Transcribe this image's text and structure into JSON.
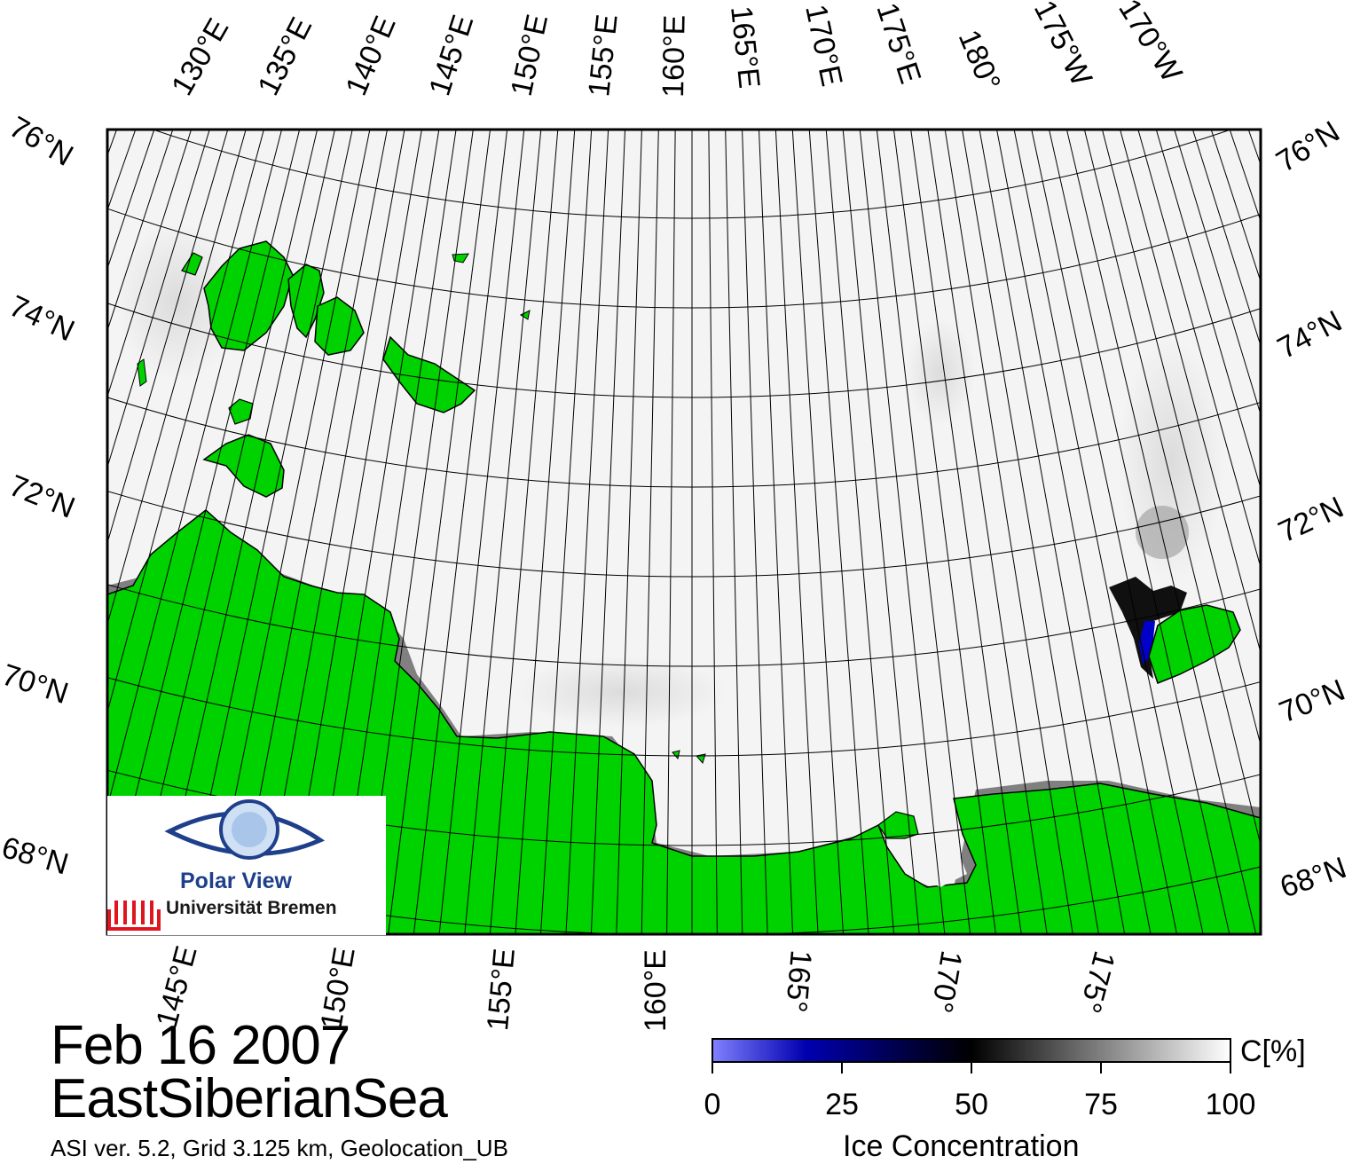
{
  "map": {
    "top_lon_labels": [
      "130°E",
      "135°E",
      "140°E",
      "145°E",
      "150°E",
      "155°E",
      "160°E",
      "165°E",
      "170°E",
      "175°E",
      "180°",
      "175°W",
      "170°W"
    ],
    "bottom_lon_labels": [
      "145°E",
      "150°E",
      "155°E",
      "160°E",
      "165°",
      "170°",
      "175°"
    ],
    "left_lat_labels": [
      "76°N",
      "74°N",
      "72°N",
      "70°N",
      "68°N"
    ],
    "right_lat_labels": [
      "76°N",
      "74°N",
      "72°N",
      "70°N",
      "68°N"
    ],
    "colors": {
      "land": "#00d200",
      "ice": "#f4f4f4",
      "coast": "#808080",
      "lowconc": "#0000a8"
    }
  },
  "logo": {
    "name": "Polar View",
    "university": "Universität Bremen"
  },
  "title": {
    "date": "Feb 16 2007",
    "region": "EastSiberianSea"
  },
  "footnote": "ASI ver. 5.2,  Grid 3.125 km, Geolocation_UB",
  "colorbar": {
    "title": "Ice Concentration",
    "unit": "C[%]",
    "ticks": [
      "0",
      "25",
      "50",
      "75",
      "100"
    ],
    "range": [
      0,
      100
    ]
  }
}
